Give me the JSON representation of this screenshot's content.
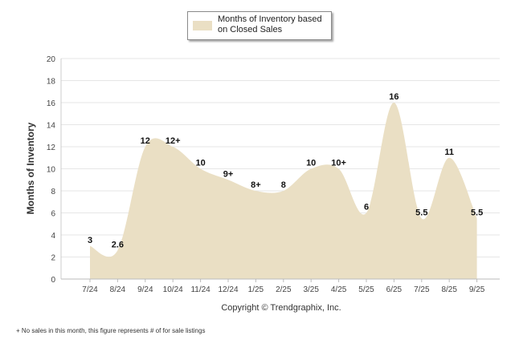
{
  "chart_data": {
    "type": "area",
    "title": "",
    "legend": "Months of Inventory based on Closed Sales",
    "legend_position": "top-center",
    "xlabel": "Copyright © Trendgraphix, Inc.",
    "ylabel": "Months of Inventory",
    "categories": [
      "7/24",
      "8/24",
      "9/24",
      "10/24",
      "11/24",
      "12/24",
      "1/25",
      "2/25",
      "3/25",
      "4/25",
      "5/25",
      "6/25",
      "7/25",
      "8/25",
      "9/25"
    ],
    "values": [
      3,
      2.6,
      12,
      12,
      10,
      9,
      8,
      8,
      10,
      10,
      6,
      16,
      5.5,
      11,
      5.5
    ],
    "data_labels": [
      "3",
      "2.6",
      "12",
      "12+",
      "10",
      "9+",
      "8+",
      "8",
      "10",
      "10+",
      "6",
      "16",
      "5.5",
      "11",
      "5.5"
    ],
    "ylim": [
      0,
      20
    ],
    "yticks": [
      0,
      2,
      4,
      6,
      8,
      10,
      12,
      14,
      16,
      18,
      20
    ],
    "grid": true,
    "fill_color": "#eadfc4"
  },
  "footnote": "+  No sales in this month, this figure represents # of for sale listings"
}
